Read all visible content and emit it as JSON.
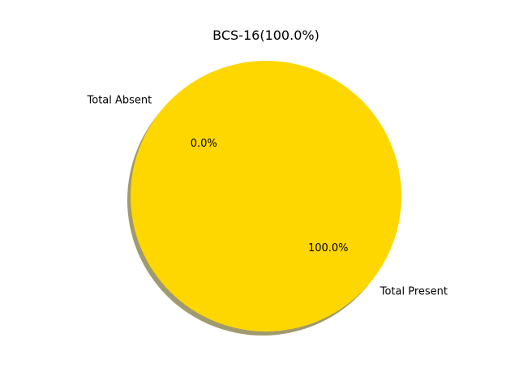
{
  "chart_data": {
    "type": "pie",
    "title": "BCS-16(100.0%)",
    "slices": [
      {
        "label": "Total Absent",
        "value": 0.0,
        "pct_label": "0.0%",
        "color": "#ff0000"
      },
      {
        "label": "Total Present",
        "value": 100.0,
        "pct_label": "100.0%",
        "color": "#ffd700"
      }
    ],
    "shadow": true,
    "shadow_color": "#a09a6e",
    "start_angle_deg": 140
  }
}
